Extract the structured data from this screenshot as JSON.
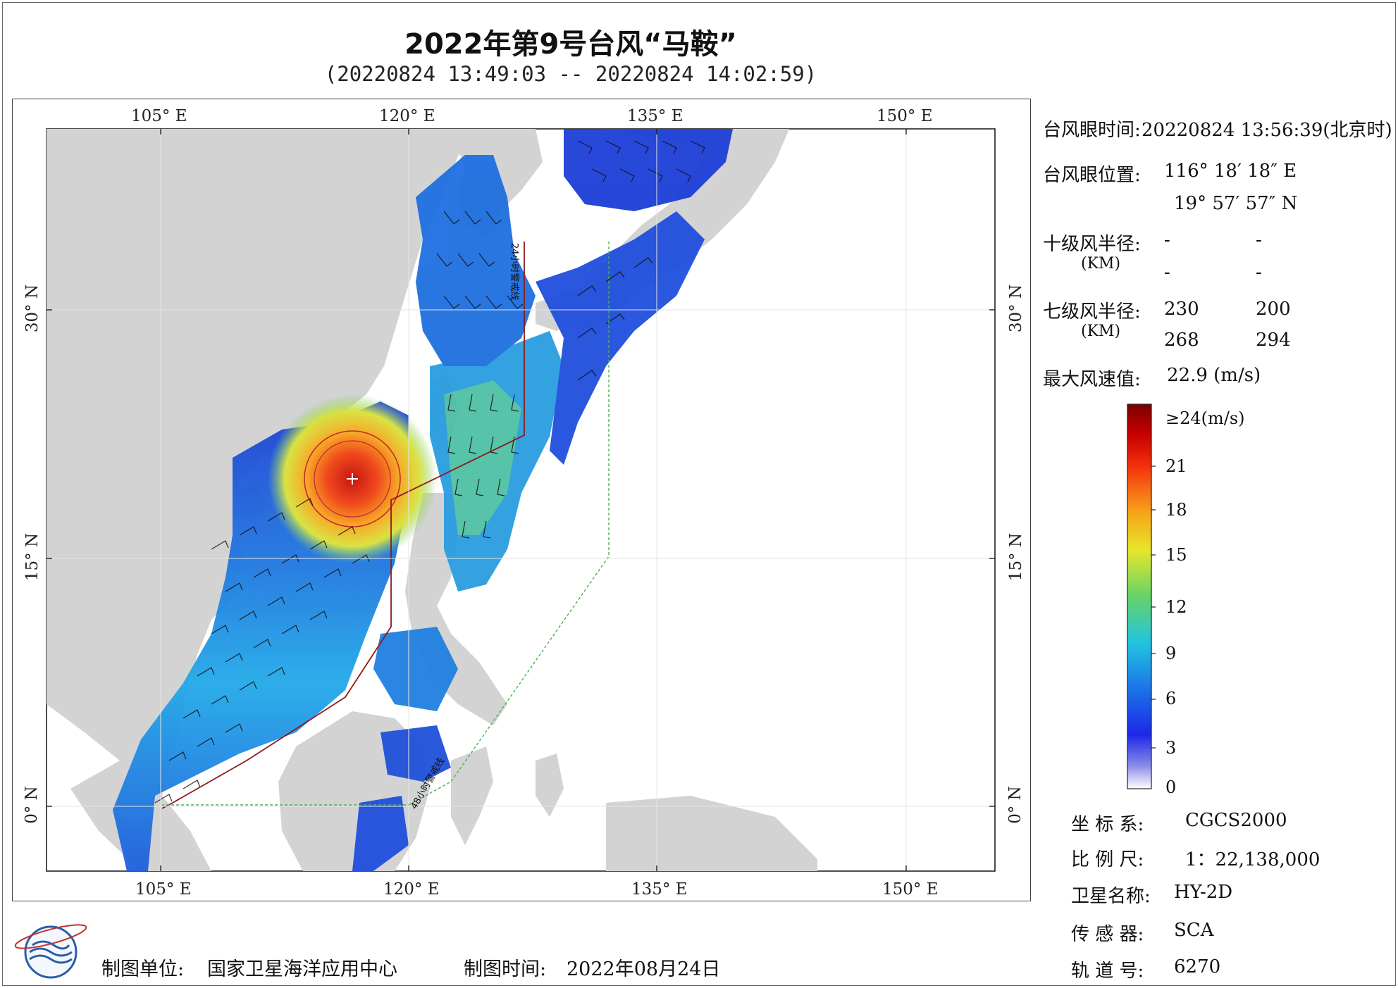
{
  "title": "2022年第9号台风“马鞍”",
  "subtitle": "(20220824 13:49:03 -- 20220824 14:02:59)",
  "map": {
    "lon_labels": [
      "105° E",
      "120° E",
      "135° E",
      "150° E"
    ],
    "lat_labels": [
      "30° N",
      "15° N",
      "0° N"
    ],
    "line_24h_label": "24小时警戒线",
    "line_48h_label": "48小时警戒线"
  },
  "info": {
    "eye_time_label": "台风眼时间:",
    "eye_time_value": "20220824 13:56:39(北京时)",
    "eye_pos_label": "台风眼位置:",
    "eye_lon": "116° 18′ 18″ E",
    "eye_lat": "19° 57′ 57″ N",
    "r10_label": "十级风半径:",
    "r10_unit": "(KM)",
    "r10_values": [
      "-",
      "-",
      "-",
      "-"
    ],
    "r7_label": "七级风半径:",
    "r7_unit": "(KM)",
    "r7_values": [
      "230",
      "200",
      "268",
      "294"
    ],
    "max_wind_label": "最大风速值:",
    "max_wind_value": "22.9  (m/s)"
  },
  "colorbar": {
    "top_label": "≥24(m/s)",
    "ticks": [
      "21",
      "18",
      "15",
      "12",
      "9",
      "6",
      "3",
      "0"
    ]
  },
  "meta": {
    "crs_label": "坐 标 系:",
    "crs_value": "CGCS2000",
    "scale_label": "比 例 尺:",
    "scale_value": "1：22,138,000",
    "sat_label": "卫星名称:",
    "sat_value": "HY-2D",
    "sensor_label": "传 感 器:",
    "sensor_value": "SCA",
    "orbit_label": "轨 道 号:",
    "orbit_value": "6270"
  },
  "footer": {
    "unit_label": "制图单位:",
    "unit_value": "国家卫星海洋应用中心",
    "time_label": "制图时间:",
    "time_value": "2022年08月24日"
  },
  "colors": {
    "land": "#d3d3d3",
    "ocean": "#ffffff",
    "warning_24h": "#8b1a1a",
    "warning_48h": "#4caf50"
  }
}
